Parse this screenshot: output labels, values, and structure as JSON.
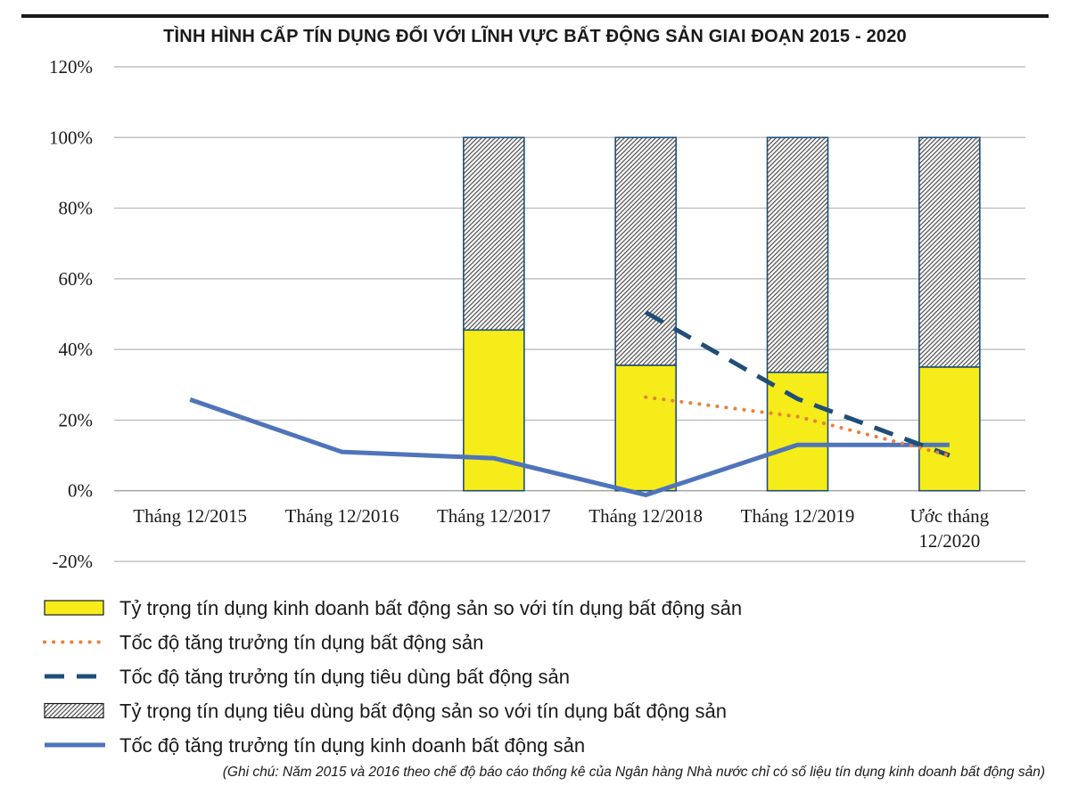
{
  "chart_data": {
    "type": "bar",
    "title": "TÌNH HÌNH CẤP TÍN DỤNG ĐỐI VỚI LĨNH VỰC BẤT ĐỘNG SẢN GIAI ĐOẠN 2015 - 2020",
    "categories": [
      [
        "Tháng 12/2015"
      ],
      [
        "Tháng 12/2016"
      ],
      [
        "Tháng 12/2017"
      ],
      [
        "Tháng 12/2018"
      ],
      [
        "Tháng 12/2019"
      ],
      [
        "Ước tháng",
        "12/2020"
      ]
    ],
    "y_ticks": [
      "120%",
      "100%",
      "80%",
      "60%",
      "40%",
      "20%",
      "0%",
      "-20%"
    ],
    "ylim": [
      -20,
      120
    ],
    "grid": true,
    "stacked": true,
    "legend_position": "bottom",
    "series": [
      {
        "name": "Tỷ trọng tín dụng kinh doanh bất động sản so với tín dụng bất động sản",
        "kind": "bar",
        "color": "#f5ec1a",
        "values": [
          null,
          null,
          45.5,
          35.5,
          33.5,
          35
        ]
      },
      {
        "name": "Tốc độ tăng trưởng tín dụng bất động sản",
        "kind": "line",
        "style": "dotted",
        "color": "#e8803a",
        "values": [
          null,
          null,
          null,
          26.5,
          21,
          10
        ]
      },
      {
        "name": "Tốc độ tăng trưởng tín dụng tiêu dùng bất động sản",
        "kind": "line",
        "style": "dashed",
        "color": "#1f4e79",
        "values": [
          null,
          null,
          null,
          50.5,
          26,
          10
        ]
      },
      {
        "name": "Tỷ trọng tín dụng tiêu dùng bất động sản so với tín dụng bất động sản",
        "kind": "bar",
        "pattern": "hatched",
        "color": "#8a8a8a",
        "values": [
          null,
          null,
          54.5,
          64.5,
          66.5,
          65
        ]
      },
      {
        "name": "Tốc độ tăng trưởng tín dụng kinh doanh bất động sản",
        "kind": "line",
        "style": "solid",
        "color": "#4f74ba",
        "values": [
          25.8,
          11,
          9.2,
          -1.2,
          13,
          13
        ]
      }
    ],
    "legend_order": [
      0,
      1,
      2,
      3,
      4
    ],
    "note": "(Ghi chú: Năm 2015 và 2016 theo chế độ báo cáo thống kê của Ngân hàng Nhà nước chỉ có số liệu tín dụng kinh doanh bất động sản)"
  }
}
